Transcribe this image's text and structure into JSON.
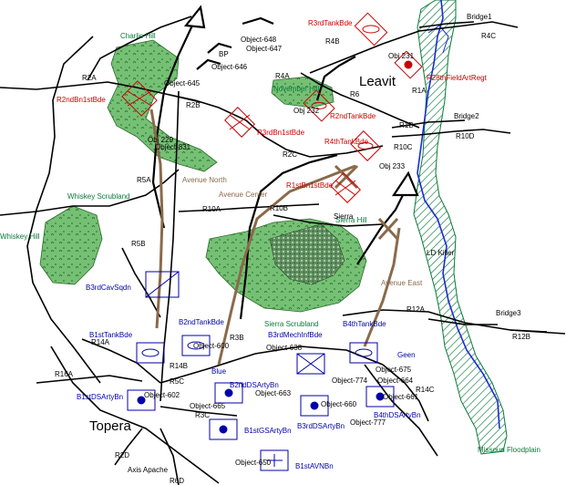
{
  "colors": {
    "road": "#000000",
    "unit_red": "#cc0000",
    "unit_blue": "#0000aa",
    "terrain_green": "#0a7a3a",
    "forest_fill": "#63b463",
    "axis_brown": "#8a6a4a",
    "river_blue": "#1b2bd4"
  },
  "places": {
    "topera": "Topera",
    "leavit": "Leavit"
  },
  "terrain": {
    "charlie_hill": "Charlie Hill",
    "november_hill": "November Hill",
    "whiskey_scrubland": "Whiskey Scrubland",
    "whiskey_hill": "Whiskey Hill",
    "sierra_scrubland": "Sierra Scrubland",
    "sierra_hill": "Sierra Hill",
    "missouri_floodplain": "Missouri Floodplain"
  },
  "routes": {
    "avenue_north": "Avenue North",
    "avenue_center": "Avenue Center",
    "avenue_east": "Avenue East",
    "axis_apache": "Axis Apache"
  },
  "bridges": [
    "Bridge1",
    "Bridge2",
    "Bridge3"
  ],
  "road_labels": [
    "R4C",
    "R4B",
    "R4A",
    "R6",
    "R1A",
    "R2A",
    "R2B",
    "R2C",
    "R1B",
    "R10D",
    "R10C",
    "R5A",
    "R10A",
    "R10B",
    "R5B",
    "R12A",
    "R12B",
    "R14A",
    "R14B",
    "R16A",
    "R5C",
    "R3C",
    "R3B",
    "R14C",
    "R2D",
    "R6D",
    "LD Killer"
  ],
  "enemy_units": {
    "r3rd_tank": "R3rdTankBde",
    "obj_231": "Obj 231",
    "r28_field_art": "R28thFieldArtRegt",
    "r2nd_bn": "R2ndBn1stBde",
    "r3rd_bn": "R3rdBn1stBde",
    "r2nd_tank": "R2ndTankBde",
    "obj_232": "Obj 232",
    "r4th_tank": "R4thTankBde",
    "obj_233": "Obj 233",
    "r1st_bn": "R1stBn1stBde"
  },
  "friendly_units": {
    "b3rd_cav": "B3rdCavSqdn",
    "b1st_tank": "B1stTankBde",
    "b2nd_tank": "B2ndTankBde",
    "b3rd_mech": "B3rdMechInfBde",
    "b4th_tank": "B4thTankBde",
    "b1st_ds_arty": "B1stDSArtyBn",
    "b2nd_ds_arty": "B2ndDSArtyBn",
    "b3rd_ds_arty": "B3rdDSArtyBn",
    "b4th_ds_arty": "B4thDSArtyBn",
    "b1st_gs_arty": "B1stGSArtyBn",
    "b1st_avn": "B1stAVNBn",
    "blue": "Blue",
    "geen": "Geen"
  },
  "objects": [
    "Object-648",
    "Object-647",
    "Object-646",
    "Object-645",
    "BP",
    "Sierra",
    "Obj 229",
    "Object-831",
    "Object-638",
    "Object-675",
    "Object-774",
    "Object-664",
    "Object-663",
    "Object-665",
    "Object-660",
    "Object-661",
    "Object-777",
    "Object-650",
    "Object-602",
    "Object-600"
  ]
}
